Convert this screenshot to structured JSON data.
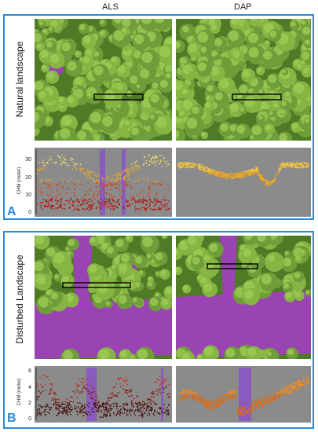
{
  "columns": {
    "left": "ALS",
    "right": "DAP"
  },
  "panels": [
    {
      "letter": "A",
      "row_label": "Natural landscape",
      "colors": {
        "canopy": "#6f9d3a",
        "canopy_light": "#9fcf55",
        "gap": "#a13fc0",
        "frame": "#2b8ad6"
      },
      "chart_data": [
        {
          "type": "scatter",
          "title": "",
          "xlabel": "",
          "ylabel": "CHM (meter)",
          "ylim": [
            0,
            35
          ],
          "y_ticks": [
            "0",
            "10",
            "20",
            "30"
          ],
          "grid": false,
          "point_color_scale": [
            "#b3160e",
            "#d9431a",
            "#e8a82a",
            "#e5d66a"
          ]
        },
        {
          "type": "scatter",
          "title": "",
          "xlabel": "",
          "ylabel": "",
          "ylim": [
            0,
            35
          ],
          "grid": false,
          "point_color_scale": [
            "#e3661b",
            "#f0a81f",
            "#f5c43a"
          ]
        }
      ]
    },
    {
      "letter": "B",
      "row_label": "Disturbed Landscape",
      "colors": {
        "canopy": "#6f9d3a",
        "canopy_light": "#9fcf55",
        "gap": "#a13fc0",
        "frame": "#2b8ad6"
      },
      "chart_data": [
        {
          "type": "scatter",
          "title": "",
          "xlabel": "",
          "ylabel": "CHM (meter)",
          "ylim": [
            0,
            7
          ],
          "y_ticks": [
            "0",
            "2",
            "4",
            "6"
          ],
          "grid": false,
          "point_color_scale": [
            "#4a1414",
            "#8a1e16",
            "#c0392b"
          ]
        },
        {
          "type": "scatter",
          "title": "",
          "xlabel": "",
          "ylabel": "",
          "ylim": [
            0,
            7
          ],
          "grid": false,
          "point_color_scale": [
            "#e06a10",
            "#f08a1e"
          ]
        }
      ]
    }
  ]
}
